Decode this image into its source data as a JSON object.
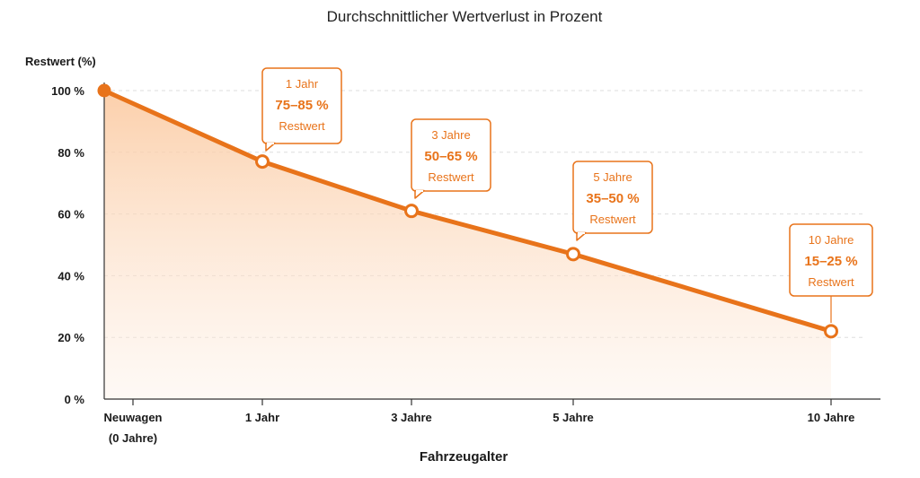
{
  "chart_data": {
    "type": "area",
    "title": "Durchschnittlicher Wertverlust in Prozent",
    "ylabel": "Restwert (%)",
    "xlabel": "Fahrzeugalter",
    "ylim": [
      0,
      100
    ],
    "yticks": [
      "0 %",
      "20 %",
      "40 %",
      "60 %",
      "80 %",
      "100 %"
    ],
    "ytick_values": [
      0,
      20,
      40,
      60,
      80,
      100
    ],
    "x": [
      0,
      1,
      3,
      5,
      10
    ],
    "categories": [
      [
        "Neuwagen",
        "(0 Jahre)"
      ],
      [
        "1 Jahr"
      ],
      [
        "3 Jahre"
      ],
      [
        "5 Jahre"
      ],
      [
        "10 Jahre"
      ]
    ],
    "values": [
      100,
      77,
      61,
      47,
      22
    ],
    "grid": true,
    "annotations": [
      {
        "x": 1,
        "line1": "1 Jahr",
        "line2": "75–85 %",
        "line3": "Restwert"
      },
      {
        "x": 3,
        "line1": "3 Jahre",
        "line2": "50–65 %",
        "line3": "Restwert"
      },
      {
        "x": 5,
        "line1": "5 Jahre",
        "line2": "35–50 %",
        "line3": "Restwert"
      },
      {
        "x": 10,
        "line1": "10 Jahre",
        "line2": "15–25 %",
        "line3": "Restwert"
      }
    ],
    "colors": {
      "line": "#e8731a",
      "fill": "#fbd2b0",
      "grid": "#dddddd",
      "axis": "#333333"
    }
  }
}
